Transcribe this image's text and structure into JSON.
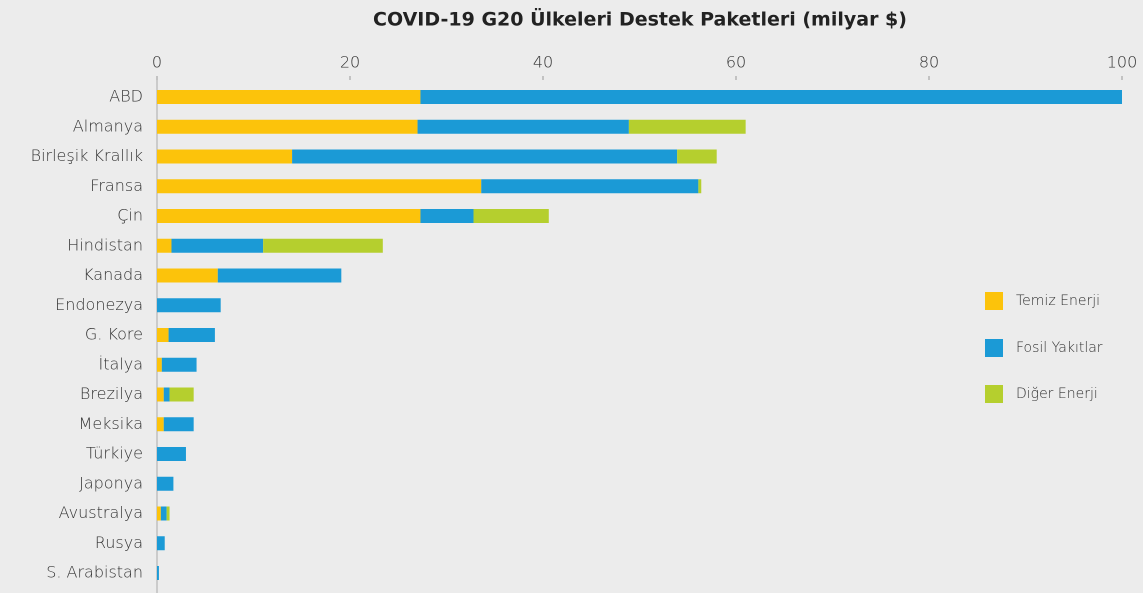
{
  "chart_data": {
    "type": "stacked_barh",
    "title": "COVID-19 G20 Ülkeleri Destek Paketleri (milyar $)",
    "categories": [
      "ABD",
      "Almanya",
      "Birleşik Krallık",
      "Fransa",
      "Çin",
      "Hindistan",
      "Kanada",
      "Endonezya",
      "G. Kore",
      "İtalya",
      "Brezilya",
      "Meksika",
      "Türkiye",
      "Japonya",
      "Avustralya",
      "Rusya",
      "S. Arabistan"
    ],
    "series": [
      {
        "name": "Temiz Enerji",
        "color": "#fcc30b",
        "values": [
          27.3,
          27.0,
          14.0,
          33.6,
          27.3,
          1.5,
          6.3,
          0,
          1.2,
          0.5,
          0.7,
          0.7,
          0,
          0,
          0.4,
          0,
          0
        ]
      },
      {
        "name": "Fosil Yakıtlar",
        "color": "#1b9ad6",
        "values": [
          72.7,
          21.9,
          39.9,
          22.5,
          5.5,
          9.5,
          12.8,
          6.6,
          4.8,
          3.6,
          0.6,
          3.1,
          3.0,
          1.7,
          0.6,
          0.8,
          0.2
        ]
      },
      {
        "name": "Diğer Enerji",
        "color": "#b5cf2e",
        "values": [
          0,
          12.1,
          4.1,
          0.3,
          7.8,
          12.4,
          0,
          0,
          0,
          0,
          2.5,
          0,
          0,
          0,
          0.3,
          0,
          0
        ]
      }
    ],
    "xlim": [
      0,
      100
    ],
    "xticks": [
      0,
      20,
      40,
      60,
      80,
      100
    ],
    "legend": "right"
  }
}
